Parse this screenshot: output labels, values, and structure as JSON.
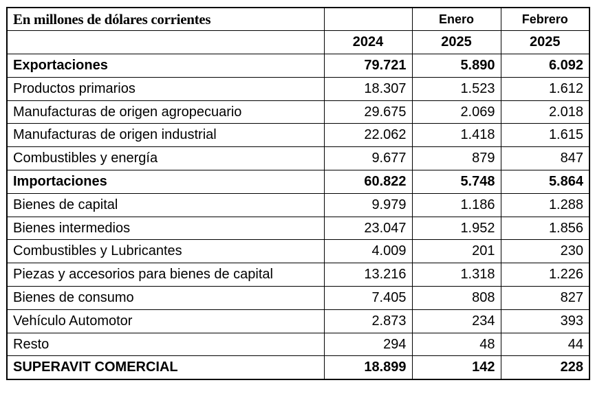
{
  "header": {
    "title": "En millones de dólares corrientes",
    "months": [
      "",
      "Enero",
      "Febrero"
    ],
    "years": [
      "2024",
      "2025",
      "2025"
    ]
  },
  "rows": [
    {
      "label": "Exportaciones",
      "bold": true,
      "values": [
        "79.721",
        "5.890",
        "6.092"
      ]
    },
    {
      "label": "Productos primarios",
      "values": [
        "18.307",
        "1.523",
        "1.612"
      ]
    },
    {
      "label": "Manufacturas de origen agropecuario",
      "values": [
        "29.675",
        "2.069",
        "2.018"
      ]
    },
    {
      "label": "Manufacturas de origen industrial",
      "values": [
        "22.062",
        "1.418",
        "1.615"
      ]
    },
    {
      "label": "Combustibles y energía",
      "values": [
        "9.677",
        "879",
        "847"
      ]
    },
    {
      "label": "Importaciones",
      "bold": true,
      "values": [
        "60.822",
        "5.748",
        "5.864"
      ]
    },
    {
      "label": "Bienes de capital",
      "values": [
        "9.979",
        "1.186",
        "1.288"
      ]
    },
    {
      "label": "Bienes intermedios",
      "values": [
        "23.047",
        "1.952",
        "1.856"
      ]
    },
    {
      "label": "Combustibles y Lubricantes",
      "values": [
        "4.009",
        "201",
        "230"
      ]
    },
    {
      "label": "Piezas y accesorios para bienes de capital",
      "values": [
        "13.216",
        "1.318",
        "1.226"
      ]
    },
    {
      "label": "Bienes de consumo",
      "values": [
        "7.405",
        "808",
        "827"
      ]
    },
    {
      "label": "Vehículo Automotor",
      "values": [
        "2.873",
        "234",
        "393"
      ]
    },
    {
      "label": "Resto",
      "values": [
        "294",
        "48",
        "44"
      ]
    },
    {
      "label": "SUPERAVIT COMERCIAL",
      "bold": true,
      "values": [
        "18.899",
        "142",
        "228"
      ]
    }
  ]
}
